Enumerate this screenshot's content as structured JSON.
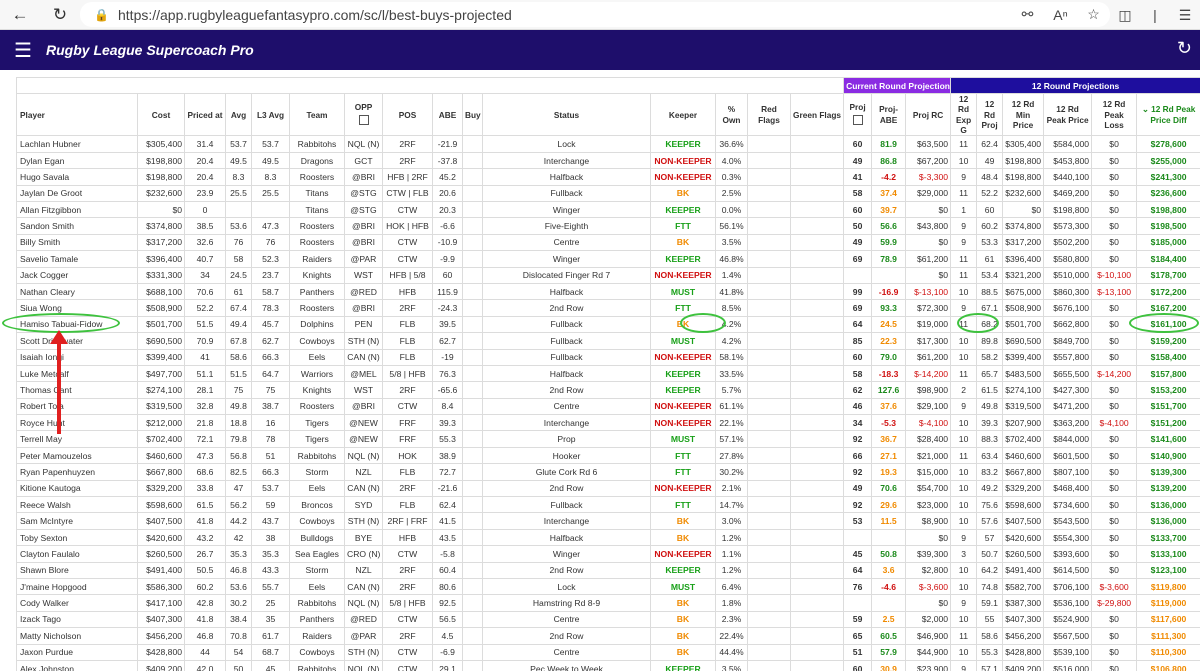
{
  "browser": {
    "url": "https://app.rugbyleaguefantasypro.com/sc/l/best-buys-projected"
  },
  "app": {
    "title": "Rugby League Supercoach Pro"
  },
  "groups": {
    "current": "Current Round Projections",
    "twelve": "12 Round Projections"
  },
  "columns": [
    "Player",
    "Cost",
    "Priced at",
    "Avg",
    "L3 Avg",
    "Team",
    "OPP",
    "POS",
    "ABE",
    "Buy",
    "Status",
    "Keeper",
    "% Own",
    "Red Flags",
    "Green Flags",
    "Proj",
    "Proj-ABE",
    "Proj RC",
    "12 Rd Exp G",
    "12 Rd Proj",
    "12 Rd Min Price",
    "12 Rd Peak Price",
    "12 Rd Peak Loss",
    "12 Rd Peak Price Diff"
  ],
  "sort_icon": "chevron-down-icon",
  "rows": [
    [
      "Lachlan Hubner",
      "$305,400",
      "31.4",
      "53.7",
      "53.7",
      "Rabbitohs",
      "NQL (N)",
      "2RF",
      "-21.9",
      "",
      "Lock",
      "KEEPER",
      "36.6%",
      "",
      "",
      "60",
      "81.9",
      "$63,500",
      "11",
      "62.4",
      "$305,400",
      "$584,000",
      "$0",
      "$278,600"
    ],
    [
      "Dylan Egan",
      "$198,800",
      "20.4",
      "49.5",
      "49.5",
      "Dragons",
      "GCT",
      "2RF",
      "-37.8",
      "",
      "Interchange",
      "NON-KEEPER",
      "4.0%",
      "",
      "",
      "49",
      "86.8",
      "$67,200",
      "10",
      "49",
      "$198,800",
      "$453,800",
      "$0",
      "$255,000"
    ],
    [
      "Hugo Savala",
      "$198,800",
      "20.4",
      "8.3",
      "8.3",
      "Roosters",
      "@BRI",
      "HFB | 2RF",
      "45.2",
      "",
      "Halfback",
      "NON-KEEPER",
      "0.3%",
      "",
      "",
      "41",
      "-4.2",
      "$-3,300",
      "9",
      "48.4",
      "$198,800",
      "$440,100",
      "$0",
      "$241,300"
    ],
    [
      "Jaylan De Groot",
      "$232,600",
      "23.9",
      "25.5",
      "25.5",
      "Titans",
      "@STG",
      "CTW | FLB",
      "20.6",
      "",
      "Fullback",
      "BK",
      "2.5%",
      "",
      "",
      "58",
      "37.4",
      "$29,000",
      "11",
      "52.2",
      "$232,600",
      "$469,200",
      "$0",
      "$236,600"
    ],
    [
      "Allan Fitzgibbon",
      "$0",
      "0",
      "",
      "",
      "Titans",
      "@STG",
      "CTW",
      "20.3",
      "",
      "Winger",
      "KEEPER",
      "0.0%",
      "",
      "",
      "60",
      "39.7",
      "$0",
      "1",
      "60",
      "$0",
      "$198,800",
      "$0",
      "$198,800"
    ],
    [
      "Sandon Smith",
      "$374,800",
      "38.5",
      "53.6",
      "47.3",
      "Roosters",
      "@BRI",
      "HOK | HFB",
      "-6.6",
      "",
      "Five-Eighth",
      "FTT",
      "56.1%",
      "",
      "",
      "50",
      "56.6",
      "$43,800",
      "9",
      "60.2",
      "$374,800",
      "$573,300",
      "$0",
      "$198,500"
    ],
    [
      "Billy Smith",
      "$317,200",
      "32.6",
      "76",
      "76",
      "Roosters",
      "@BRI",
      "CTW",
      "-10.9",
      "",
      "Centre",
      "BK",
      "3.5%",
      "",
      "",
      "49",
      "59.9",
      "$0",
      "9",
      "53.3",
      "$317,200",
      "$502,200",
      "$0",
      "$185,000"
    ],
    [
      "Savelio Tamale",
      "$396,400",
      "40.7",
      "58",
      "52.3",
      "Raiders",
      "@PAR",
      "CTW",
      "-9.9",
      "",
      "Winger",
      "KEEPER",
      "46.8%",
      "",
      "",
      "69",
      "78.9",
      "$61,200",
      "11",
      "61",
      "$396,400",
      "$580,800",
      "$0",
      "$184,400"
    ],
    [
      "Jack Cogger",
      "$331,300",
      "34",
      "24.5",
      "23.7",
      "Knights",
      "WST",
      "HFB | 5/8",
      "60",
      "",
      "Dislocated Finger Rd 7",
      "NON-KEEPER",
      "1.4%",
      "",
      "",
      "",
      "",
      "$0",
      "11",
      "53.4",
      "$321,200",
      "$510,000",
      "$-10,100",
      "$178,700"
    ],
    [
      "Nathan Cleary",
      "$688,100",
      "70.6",
      "61",
      "58.7",
      "Panthers",
      "@RED",
      "HFB",
      "115.9",
      "",
      "Halfback",
      "MUST",
      "41.8%",
      "",
      "",
      "99",
      "-16.9",
      "$-13,100",
      "10",
      "88.5",
      "$675,000",
      "$860,300",
      "$-13,100",
      "$172,200"
    ],
    [
      "Siua Wong",
      "$508,900",
      "52.2",
      "67.4",
      "78.3",
      "Roosters",
      "@BRI",
      "2RF",
      "-24.3",
      "",
      "2nd Row",
      "FTT",
      "8.5%",
      "",
      "",
      "69",
      "93.3",
      "$72,300",
      "9",
      "67.1",
      "$508,900",
      "$676,100",
      "$0",
      "$167,200"
    ],
    [
      "Hamiso Tabuai-Fidow",
      "$501,700",
      "51.5",
      "49.4",
      "45.7",
      "Dolphins",
      "PEN",
      "FLB",
      "39.5",
      "",
      "Fullback",
      "BK",
      "4.2%",
      "",
      "",
      "64",
      "24.5",
      "$19,000",
      "11",
      "68.2",
      "$501,700",
      "$662,800",
      "$0",
      "$161,100"
    ],
    [
      "Scott Drinkwater",
      "$690,500",
      "70.9",
      "67.8",
      "62.7",
      "Cowboys",
      "STH (N)",
      "FLB",
      "62.7",
      "",
      "Fullback",
      "MUST",
      "4.2%",
      "",
      "",
      "85",
      "22.3",
      "$17,300",
      "10",
      "89.8",
      "$690,500",
      "$849,700",
      "$0",
      "$159,200"
    ],
    [
      "Isaiah Iongi",
      "$399,400",
      "41",
      "58.6",
      "66.3",
      "Eels",
      "CAN (N)",
      "FLB",
      "-19",
      "",
      "Fullback",
      "NON-KEEPER",
      "58.1%",
      "",
      "",
      "60",
      "79.0",
      "$61,200",
      "10",
      "58.2",
      "$399,400",
      "$557,800",
      "$0",
      "$158,400"
    ],
    [
      "Luke Metcalf",
      "$497,700",
      "51.1",
      "51.5",
      "64.7",
      "Warriors",
      "@MEL",
      "5/8 | HFB",
      "76.3",
      "",
      "Halfback",
      "KEEPER",
      "33.5%",
      "",
      "",
      "58",
      "-18.3",
      "$-14,200",
      "11",
      "65.7",
      "$483,500",
      "$655,500",
      "$-14,200",
      "$157,800"
    ],
    [
      "Thomas Cant",
      "$274,100",
      "28.1",
      "75",
      "75",
      "Knights",
      "WST",
      "2RF",
      "-65.6",
      "",
      "2nd Row",
      "KEEPER",
      "5.7%",
      "",
      "",
      "62",
      "127.6",
      "$98,900",
      "2",
      "61.5",
      "$274,100",
      "$427,300",
      "$0",
      "$153,200"
    ],
    [
      "Robert Toia",
      "$319,500",
      "32.8",
      "49.8",
      "38.7",
      "Roosters",
      "@BRI",
      "CTW",
      "8.4",
      "",
      "Centre",
      "NON-KEEPER",
      "61.1%",
      "",
      "",
      "46",
      "37.6",
      "$29,100",
      "9",
      "49.8",
      "$319,500",
      "$471,200",
      "$0",
      "$151,700"
    ],
    [
      "Royce Hunt",
      "$212,000",
      "21.8",
      "18.8",
      "16",
      "Tigers",
      "@NEW",
      "FRF",
      "39.3",
      "",
      "Interchange",
      "NON-KEEPER",
      "22.1%",
      "",
      "",
      "34",
      "-5.3",
      "$-4,100",
      "10",
      "39.3",
      "$207,900",
      "$363,200",
      "$-4,100",
      "$151,200"
    ],
    [
      "Terrell May",
      "$702,400",
      "72.1",
      "79.8",
      "78",
      "Tigers",
      "@NEW",
      "FRF",
      "55.3",
      "",
      "Prop",
      "MUST",
      "57.1%",
      "",
      "",
      "92",
      "36.7",
      "$28,400",
      "10",
      "88.3",
      "$702,400",
      "$844,000",
      "$0",
      "$141,600"
    ],
    [
      "Peter Mamouzelos",
      "$460,600",
      "47.3",
      "56.8",
      "51",
      "Rabbitohs",
      "NQL (N)",
      "HOK",
      "38.9",
      "",
      "Hooker",
      "FTT",
      "27.8%",
      "",
      "",
      "66",
      "27.1",
      "$21,000",
      "11",
      "63.4",
      "$460,600",
      "$601,500",
      "$0",
      "$140,900"
    ],
    [
      "Ryan Papenhuyzen",
      "$667,800",
      "68.6",
      "82.5",
      "66.3",
      "Storm",
      "NZL",
      "FLB",
      "72.7",
      "",
      "Glute Cork Rd 6",
      "FTT",
      "30.2%",
      "",
      "",
      "92",
      "19.3",
      "$15,000",
      "10",
      "83.2",
      "$667,800",
      "$807,100",
      "$0",
      "$139,300"
    ],
    [
      "Kitione Kautoga",
      "$329,200",
      "33.8",
      "47",
      "53.7",
      "Eels",
      "CAN (N)",
      "2RF",
      "-21.6",
      "",
      "2nd Row",
      "NON-KEEPER",
      "2.1%",
      "",
      "",
      "49",
      "70.6",
      "$54,700",
      "10",
      "49.2",
      "$329,200",
      "$468,400",
      "$0",
      "$139,200"
    ],
    [
      "Reece Walsh",
      "$598,600",
      "61.5",
      "56.2",
      "59",
      "Broncos",
      "SYD",
      "FLB",
      "62.4",
      "",
      "Fullback",
      "FTT",
      "14.7%",
      "",
      "",
      "92",
      "29.6",
      "$23,000",
      "10",
      "75.6",
      "$598,600",
      "$734,600",
      "$0",
      "$136,000"
    ],
    [
      "Sam McIntyre",
      "$407,500",
      "41.8",
      "44.2",
      "43.7",
      "Cowboys",
      "STH (N)",
      "2RF | FRF",
      "41.5",
      "",
      "Interchange",
      "BK",
      "3.0%",
      "",
      "",
      "53",
      "11.5",
      "$8,900",
      "10",
      "57.6",
      "$407,500",
      "$543,500",
      "$0",
      "$136,000"
    ],
    [
      "Toby Sexton",
      "$420,600",
      "43.2",
      "42",
      "38",
      "Bulldogs",
      "BYE",
      "HFB",
      "43.5",
      "",
      "Halfback",
      "BK",
      "1.2%",
      "",
      "",
      "",
      "",
      "$0",
      "9",
      "57",
      "$420,600",
      "$554,300",
      "$0",
      "$133,700"
    ],
    [
      "Clayton Faulalo",
      "$260,500",
      "26.7",
      "35.3",
      "35.3",
      "Sea Eagles",
      "CRO (N)",
      "CTW",
      "-5.8",
      "",
      "Winger",
      "NON-KEEPER",
      "1.1%",
      "",
      "",
      "45",
      "50.8",
      "$39,300",
      "3",
      "50.7",
      "$260,500",
      "$393,600",
      "$0",
      "$133,100"
    ],
    [
      "Shawn Blore",
      "$491,400",
      "50.5",
      "46.8",
      "43.3",
      "Storm",
      "NZL",
      "2RF",
      "60.4",
      "",
      "2nd Row",
      "KEEPER",
      "1.2%",
      "",
      "",
      "64",
      "3.6",
      "$2,800",
      "10",
      "64.2",
      "$491,400",
      "$614,500",
      "$0",
      "$123,100"
    ],
    [
      "J'maine Hopgood",
      "$586,300",
      "60.2",
      "53.6",
      "55.7",
      "Eels",
      "CAN (N)",
      "2RF",
      "80.6",
      "",
      "Lock",
      "MUST",
      "6.4%",
      "",
      "",
      "76",
      "-4.6",
      "$-3,600",
      "10",
      "74.8",
      "$582,700",
      "$706,100",
      "$-3,600",
      "$119,800"
    ],
    [
      "Cody Walker",
      "$417,100",
      "42.8",
      "30.2",
      "25",
      "Rabbitohs",
      "NQL (N)",
      "5/8 | HFB",
      "92.5",
      "",
      "Hamstring Rd 8-9",
      "BK",
      "1.8%",
      "",
      "",
      "",
      "",
      "$0",
      "9",
      "59.1",
      "$387,300",
      "$536,100",
      "$-29,800",
      "$119,000"
    ],
    [
      "Izack Tago",
      "$407,300",
      "41.8",
      "38.4",
      "35",
      "Panthers",
      "@RED",
      "CTW",
      "56.5",
      "",
      "Centre",
      "BK",
      "2.3%",
      "",
      "",
      "59",
      "2.5",
      "$2,000",
      "10",
      "55",
      "$407,300",
      "$524,900",
      "$0",
      "$117,600"
    ],
    [
      "Matty Nicholson",
      "$456,200",
      "46.8",
      "70.8",
      "61.7",
      "Raiders",
      "@PAR",
      "2RF",
      "4.5",
      "",
      "2nd Row",
      "BK",
      "22.4%",
      "",
      "",
      "65",
      "60.5",
      "$46,900",
      "11",
      "58.6",
      "$456,200",
      "$567,500",
      "$0",
      "$111,300"
    ],
    [
      "Jaxon Purdue",
      "$428,800",
      "44",
      "54",
      "68.7",
      "Cowboys",
      "STH (N)",
      "CTW",
      "-6.9",
      "",
      "Centre",
      "BK",
      "44.4%",
      "",
      "",
      "51",
      "57.9",
      "$44,900",
      "10",
      "55.3",
      "$428,800",
      "$539,100",
      "$0",
      "$110,300"
    ],
    [
      "Alex Johnston",
      "$409,200",
      "42.0",
      "50",
      "45",
      "Rabbitohs",
      "NQL (N)",
      "CTW",
      "29.1",
      "",
      "Pec Week to Week",
      "KEEPER",
      "3.5%",
      "",
      "",
      "60",
      "30.9",
      "$23,900",
      "9",
      "57.1",
      "$409,200",
      "$516,000",
      "$0",
      "$106,800"
    ]
  ]
}
